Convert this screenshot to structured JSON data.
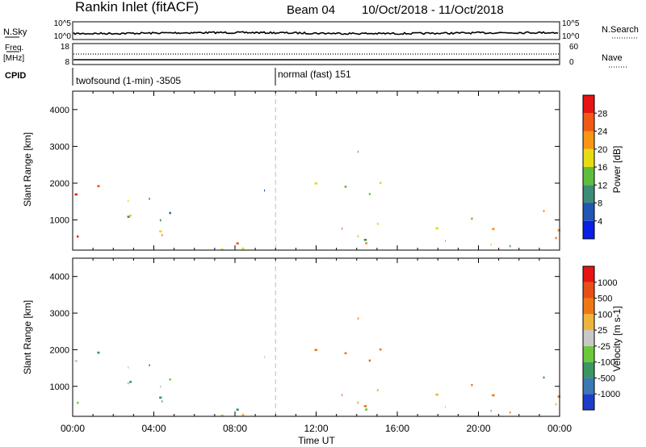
{
  "header": {
    "title": "Rankin Inlet (fitACF)",
    "beam": "Beam 04",
    "date_range": "10/Oct/2018 - 11/Oct/2018"
  },
  "top_panels": {
    "nsky_label": "N.Sky",
    "nsky_ticks": [
      "10^5",
      "10^0"
    ],
    "nsearch_label": "N.Search",
    "nsearch_ticks": [
      "10^5",
      "10^0"
    ],
    "freq_label_1": "Freq.",
    "freq_label_2": "[MHz]",
    "freq_ticks": [
      "18",
      "8"
    ],
    "nave_label": "Nave",
    "nave_ticks": [
      "60",
      "0"
    ],
    "cpid_label": "CPID",
    "cpid_modes": [
      {
        "name": "twofsound (1-min) -3505"
      },
      {
        "name": "normal (fast) 151"
      }
    ]
  },
  "chart_data": [
    {
      "type": "heatmap",
      "title": "",
      "xlabel": "",
      "ylabel": "Slant Range [km]",
      "x_range": [
        "00:00",
        "24:00"
      ],
      "ylim": [
        180,
        4500
      ],
      "y_ticks": [
        "1000",
        "2000",
        "3000",
        "4000"
      ],
      "x_ticks": [
        "00:00",
        "04:00",
        "08:00",
        "12:00",
        "16:00",
        "20:00",
        "00:00"
      ],
      "colorbar_label": "Power [dB]",
      "colorbar_ticks": [
        "4",
        "8",
        "12",
        "16",
        "20",
        "24",
        "28"
      ],
      "colorbar_colors": [
        "#0a1ee6",
        "#2255b4",
        "#3c8c78",
        "#5fbe3c",
        "#e6dc14",
        "#fa9614",
        "#f05a14",
        "#e61414"
      ]
    },
    {
      "type": "heatmap",
      "title": "",
      "xlabel": "Time UT",
      "ylabel": "Slant Range [km]",
      "x_range": [
        "00:00",
        "24:00"
      ],
      "ylim": [
        180,
        4500
      ],
      "y_ticks": [
        "1000",
        "2000",
        "3000",
        "4000"
      ],
      "x_ticks": [
        "00:00",
        "04:00",
        "08:00",
        "12:00",
        "16:00",
        "20:00",
        "00:00"
      ],
      "colorbar_label": "Velocity [m s-1]",
      "colorbar_ticks": [
        "1000",
        "500",
        "100",
        "25",
        "-25",
        "-100",
        "-500",
        "-1000"
      ],
      "colorbar_colors": [
        "#1e3cc8",
        "#3c78b4",
        "#3c9664",
        "#6ec83c",
        "#c8c8c8",
        "#f0b43c",
        "#f07814",
        "#e65014",
        "#e61414"
      ]
    }
  ]
}
